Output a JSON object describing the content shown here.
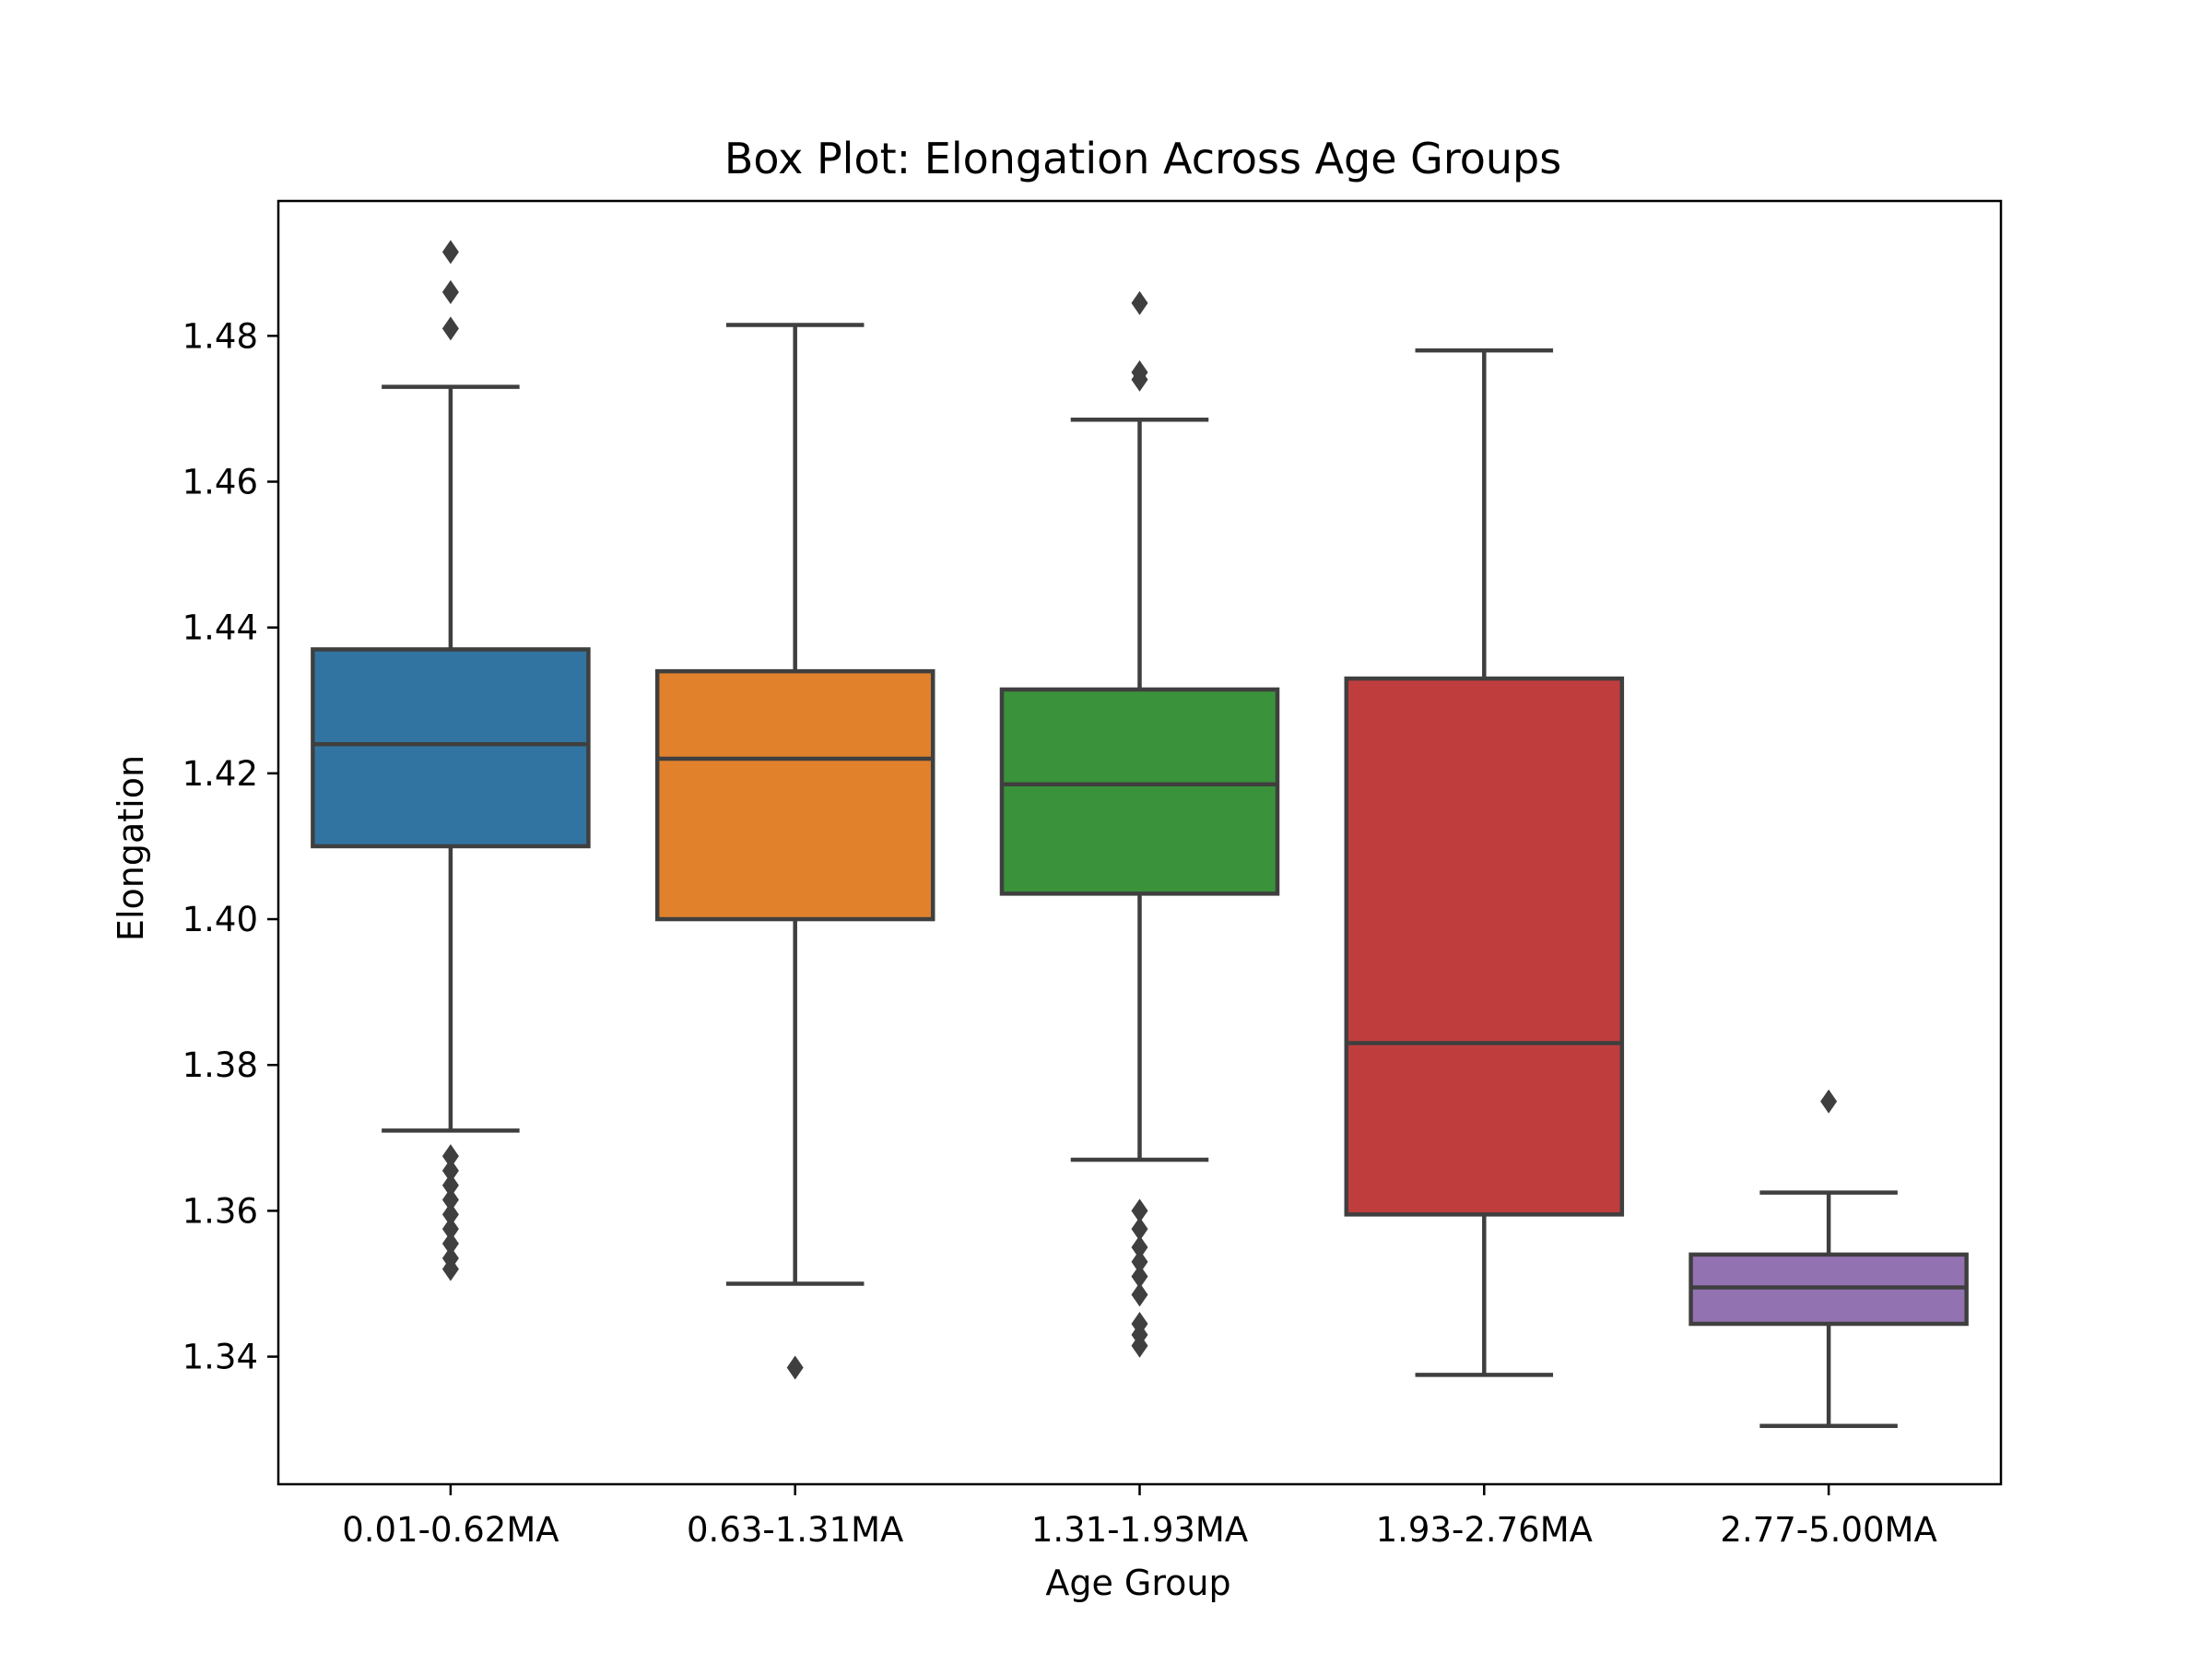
{
  "chart_data": {
    "type": "box",
    "title": "Box Plot: Elongation Across Age Groups",
    "xlabel": "Age Group",
    "ylabel": "Elongation",
    "ylim": [
      1.3225,
      1.4985
    ],
    "yticks": [
      "1.34",
      "1.36",
      "1.38",
      "1.40",
      "1.42",
      "1.44",
      "1.46",
      "1.48"
    ],
    "grid": false,
    "legend": "none",
    "categories": [
      "0.01-0.62MA",
      "0.63-1.31MA",
      "1.31-1.93MA",
      "1.93-2.76MA",
      "2.77-5.00MA"
    ],
    "boxes": [
      {
        "category": "0.01-0.62MA",
        "color": "#3274a1",
        "whisker_low": 1.371,
        "q1": 1.41,
        "median": 1.424,
        "q3": 1.437,
        "whisker_high": 1.473,
        "outliers": [
          1.4915,
          1.486,
          1.481,
          1.3675,
          1.3655,
          1.3635,
          1.3615,
          1.3595,
          1.3575,
          1.3555,
          1.3535,
          1.352
        ]
      },
      {
        "category": "0.63-1.31MA",
        "color": "#e1812c",
        "whisker_low": 1.35,
        "q1": 1.4,
        "median": 1.422,
        "q3": 1.434,
        "whisker_high": 1.4815,
        "outliers": [
          1.3385
        ]
      },
      {
        "category": "1.31-1.93MA",
        "color": "#3a923a",
        "whisker_low": 1.367,
        "q1": 1.4035,
        "median": 1.4185,
        "q3": 1.4315,
        "whisker_high": 1.4685,
        "outliers": [
          1.4845,
          1.475,
          1.474,
          1.36,
          1.3575,
          1.355,
          1.353,
          1.351,
          1.3485,
          1.3445,
          1.343,
          1.3415
        ]
      },
      {
        "category": "1.93-2.76MA",
        "color": "#c03d3e",
        "whisker_low": 1.3375,
        "q1": 1.3595,
        "median": 1.383,
        "q3": 1.433,
        "whisker_high": 1.478,
        "outliers": []
      },
      {
        "category": "2.77-5.00MA",
        "color": "#9372b2",
        "whisker_low": 1.3305,
        "q1": 1.3445,
        "median": 1.3495,
        "q3": 1.354,
        "whisker_high": 1.3625,
        "outliers": [
          1.375
        ]
      }
    ]
  }
}
